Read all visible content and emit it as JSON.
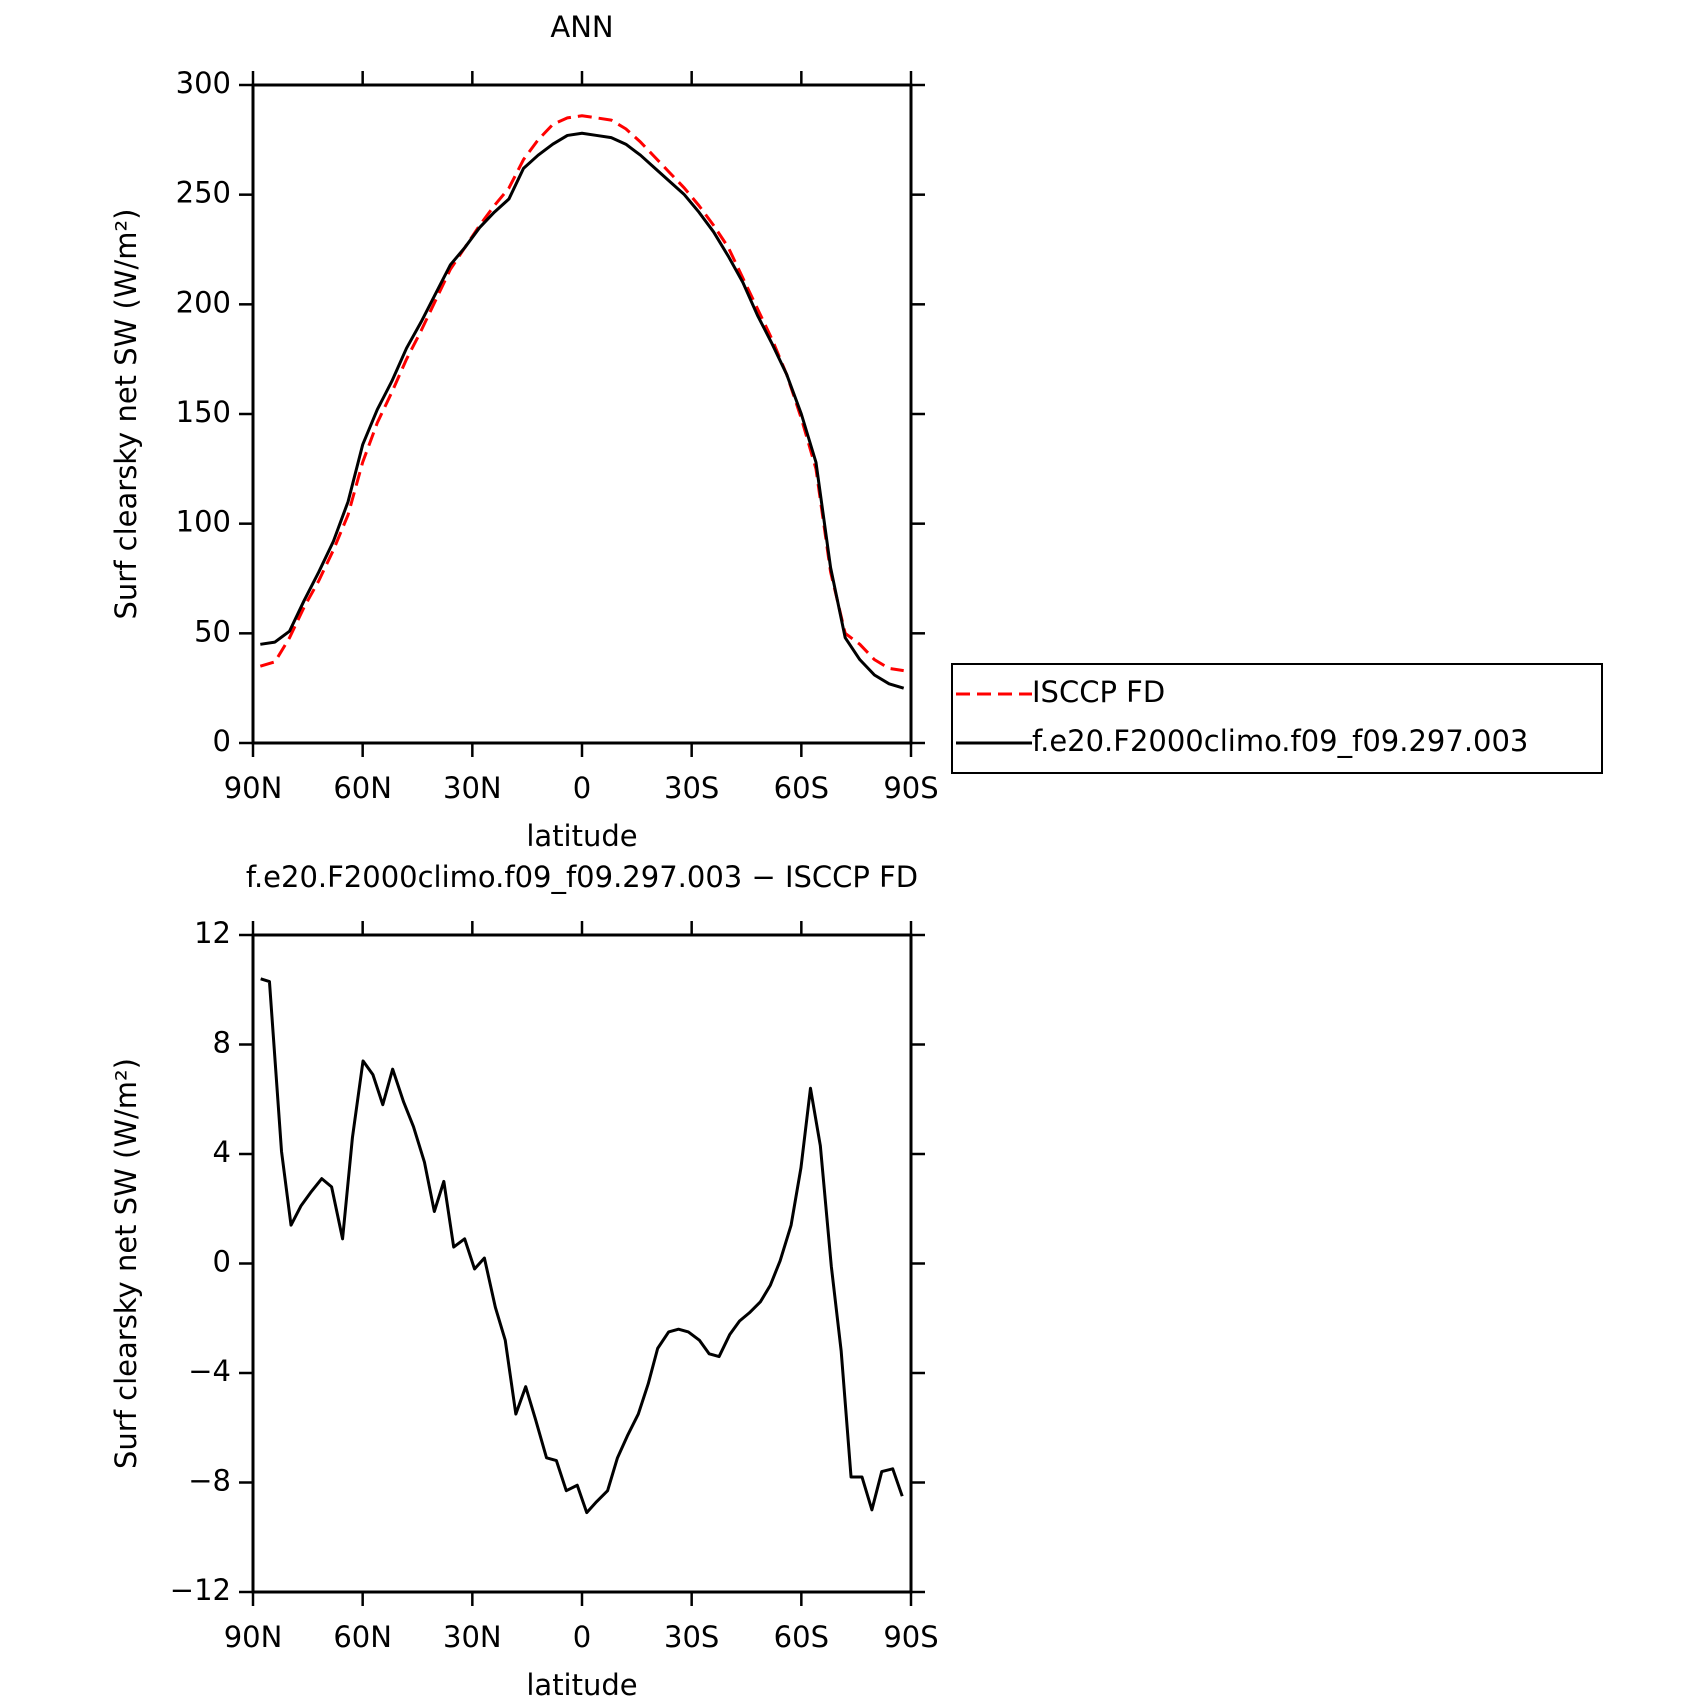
{
  "chart_data": [
    {
      "type": "line",
      "title": "ANN",
      "xlabel": "latitude",
      "ylabel": "Surf clearsky net SW (W/m²)",
      "x": [
        88,
        84,
        80,
        76,
        72,
        68,
        64,
        60,
        56,
        52,
        48,
        44,
        40,
        36,
        32,
        28,
        24,
        20,
        16,
        12,
        8,
        4,
        0,
        -4,
        -8,
        -12,
        -16,
        -20,
        -24,
        -28,
        -32,
        -36,
        -40,
        -44,
        -48,
        -52,
        -56,
        -60,
        -64,
        -68,
        -72,
        -76,
        -80,
        -84,
        -88
      ],
      "series": [
        {
          "name": "ISCCP FD",
          "color": "#ff0000",
          "line_style": "dashed",
          "values": [
            35,
            37,
            48,
            62,
            74,
            88,
            104,
            128,
            146,
            160,
            175,
            188,
            202,
            216,
            226,
            236,
            245,
            253,
            266,
            275,
            282,
            285,
            286,
            285,
            284,
            280,
            274,
            267,
            260,
            253,
            245,
            236,
            226,
            212,
            198,
            184,
            168,
            148,
            125,
            78,
            50,
            45,
            38,
            34,
            33
          ]
        },
        {
          "name": "f.e20.F2000climo.f09_f09.297.003",
          "color": "#000000",
          "line_style": "solid",
          "values": [
            45,
            46,
            51,
            65,
            78,
            92,
            110,
            136,
            152,
            165,
            180,
            192,
            205,
            218,
            226,
            235,
            242,
            248,
            262,
            268,
            273,
            277,
            278,
            277,
            276,
            273,
            268,
            262,
            256,
            250,
            242,
            233,
            222,
            210,
            195,
            182,
            168,
            150,
            128,
            80,
            48,
            38,
            31,
            27,
            25
          ]
        }
      ],
      "xlim": [
        90,
        -90
      ],
      "xticks": [
        {
          "value": 90,
          "label": "90N"
        },
        {
          "value": 60,
          "label": "60N"
        },
        {
          "value": 30,
          "label": "30N"
        },
        0,
        {
          "value": -30,
          "label": "30S"
        },
        {
          "value": -60,
          "label": "60S"
        },
        {
          "value": -90,
          "label": "90S"
        }
      ],
      "ylim": [
        0,
        300
      ],
      "yticks": [
        0,
        50,
        100,
        150,
        200,
        250,
        300
      ],
      "legend": "right"
    },
    {
      "type": "line",
      "title": "f.e20.F2000climo.f09_f09.297.003 − ISCCP FD",
      "xlabel": "latitude",
      "ylabel": "Surf clearsky net SW (W/m²)",
      "x": [
        87.9,
        85.5,
        82.2,
        79.6,
        76.9,
        74.2,
        71.2,
        68.5,
        65.5,
        62.8,
        59.9,
        57.2,
        54.5,
        51.8,
        48.8,
        46.1,
        43.1,
        40.4,
        37.8,
        35.1,
        32.1,
        29.4,
        26.7,
        23.7,
        21.0,
        18.1,
        15.4,
        12.7,
        9.7,
        7.0,
        4.3,
        1.3,
        -1.3,
        -4.0,
        -7.0,
        -9.7,
        -12.4,
        -15.4,
        -18.1,
        -20.7,
        -23.7,
        -26.4,
        -29.1,
        -32.1,
        -34.8,
        -37.5,
        -40.4,
        -43.1,
        -45.8,
        -48.8,
        -51.5,
        -54.2,
        -57.2,
        -59.9,
        -62.5,
        -65.2,
        -68.2,
        -70.9,
        -73.6,
        -76.6,
        -79.3,
        -82.0,
        -85.0,
        -87.6
      ],
      "series": [
        {
          "color": "#000000",
          "line_style": "solid",
          "values": [
            10.4,
            10.3,
            4.1,
            1.4,
            2.1,
            2.6,
            3.1,
            2.8,
            0.9,
            4.6,
            7.4,
            6.9,
            5.8,
            7.1,
            5.9,
            5.0,
            3.7,
            1.9,
            3.0,
            0.6,
            0.9,
            -0.2,
            0.2,
            -1.6,
            -2.8,
            -5.5,
            -4.5,
            -5.7,
            -7.1,
            -7.2,
            -8.3,
            -8.1,
            -9.1,
            -8.7,
            -8.3,
            -7.1,
            -6.3,
            -5.5,
            -4.4,
            -3.1,
            -2.5,
            -2.4,
            -2.5,
            -2.8,
            -3.3,
            -3.4,
            -2.6,
            -2.1,
            -1.8,
            -1.4,
            -0.8,
            0.1,
            1.4,
            3.5,
            6.4,
            4.3,
            -0.1,
            -3.2,
            -7.8,
            -7.8,
            -9.0,
            -7.6,
            -7.5,
            -8.5
          ]
        }
      ],
      "xlim": [
        90,
        -90
      ],
      "xticks": [
        {
          "value": 90,
          "label": "90N"
        },
        {
          "value": 60,
          "label": "60N"
        },
        {
          "value": 30,
          "label": "30N"
        },
        0,
        {
          "value": -30,
          "label": "30S"
        },
        {
          "value": -60,
          "label": "60S"
        },
        {
          "value": -90,
          "label": "90S"
        }
      ],
      "ylim": [
        -12,
        12
      ],
      "yticks": [
        {
          "value": -12,
          "label": "−12"
        },
        {
          "value": -8,
          "label": "−8"
        },
        {
          "value": -4,
          "label": "−4"
        },
        0,
        4,
        8,
        12
      ]
    }
  ]
}
